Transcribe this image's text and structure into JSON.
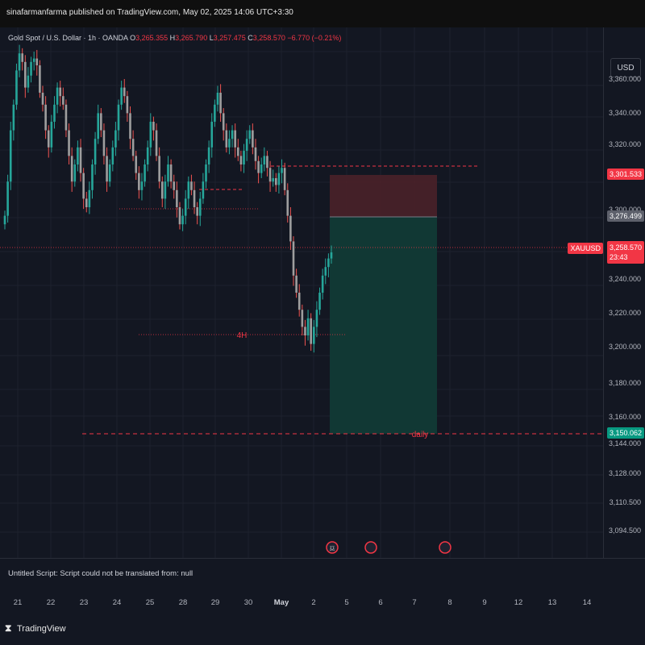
{
  "publish": {
    "text": "sinafarmanfarma published on TradingView.com, May 02, 2025 14:06 UTC+3:30"
  },
  "legend": {
    "symbol": "Gold Spot / U.S. Dollar · 1h · OANDA",
    "open_label": "O",
    "open": "3,265.355",
    "high_label": "H",
    "high": "3,265.790",
    "low_label": "L",
    "low": "3,257.475",
    "close_label": "C",
    "close": "3,258.570",
    "change": "−6.770 (−0.21%)"
  },
  "price_axis": {
    "currency": "USD",
    "labels": [
      "3,360.000",
      "3,340.000",
      "3,320.000",
      "3,300.000",
      "3,240.000",
      "3,220.000",
      "3,200.000",
      "3,180.000",
      "3,160.000",
      "3,144.000",
      "3,128.000",
      "3,110.500",
      "3,094.500"
    ],
    "tags": {
      "stop": "3,301.533",
      "entry": "3,276.499",
      "symbol": "XAUUSD",
      "last": "3,258.570",
      "countdown": "23:43",
      "target": "3,150.062"
    }
  },
  "annotations": {
    "h4": "4H",
    "daily": "daily"
  },
  "script_message": "Untitled Script: Script could not be translated from: null",
  "time_axis": [
    "21",
    "22",
    "23",
    "24",
    "25",
    "28",
    "29",
    "30",
    "May",
    "2",
    "5",
    "6",
    "7",
    "8",
    "9",
    "12",
    "13",
    "14"
  ],
  "footer": {
    "brand": "TradingView",
    "logo": "tradingview-logo-icon"
  },
  "colors": {
    "background": "#131722",
    "up": "#26a69a",
    "down": "#ef5350",
    "stop_zone": "#4a2129",
    "target_zone": "#113a36",
    "accent_red": "#f23645",
    "target_tag": "#089981"
  },
  "chart_data": {
    "type": "candlestick",
    "symbol": "XAUUSD",
    "timeframe": "1h",
    "ylim": [
      3085,
      3380
    ],
    "position": {
      "type": "short",
      "entry": 3276.499,
      "stop": 3301.533,
      "target": 3150.062
    },
    "levels": [
      {
        "label": "",
        "price": 3308
      },
      {
        "label": "",
        "price": 3295
      },
      {
        "label": "",
        "price": 3283
      },
      {
        "label": "4H",
        "price": 3208
      },
      {
        "label": "daily",
        "price": 3150
      }
    ],
    "closes": [
      3280,
      3300,
      3330,
      3345,
      3365,
      3375,
      3370,
      3355,
      3362,
      3370,
      3372,
      3368,
      3352,
      3345,
      3330,
      3320,
      3335,
      3345,
      3355,
      3350,
      3345,
      3330,
      3315,
      3300,
      3310,
      3320,
      3305,
      3290,
      3285,
      3295,
      3310,
      3325,
      3340,
      3330,
      3315,
      3300,
      3310,
      3320,
      3330,
      3345,
      3355,
      3350,
      3340,
      3325,
      3315,
      3305,
      3295,
      3300,
      3310,
      3320,
      3335,
      3330,
      3315,
      3300,
      3290,
      3300,
      3310,
      3300,
      3295,
      3285,
      3275,
      3280,
      3290,
      3300,
      3295,
      3285,
      3280,
      3290,
      3300,
      3310,
      3320,
      3335,
      3345,
      3352,
      3340,
      3330,
      3320,
      3325,
      3330,
      3320,
      3315,
      3310,
      3318,
      3325,
      3330,
      3320,
      3312,
      3305,
      3310,
      3315,
      3308,
      3300,
      3302,
      3298,
      3305,
      3308,
      3295,
      3280,
      3265,
      3245,
      3235,
      3225,
      3215,
      3210,
      3220,
      3205,
      3215,
      3225,
      3235,
      3245,
      3250,
      3255,
      3258.57
    ]
  }
}
